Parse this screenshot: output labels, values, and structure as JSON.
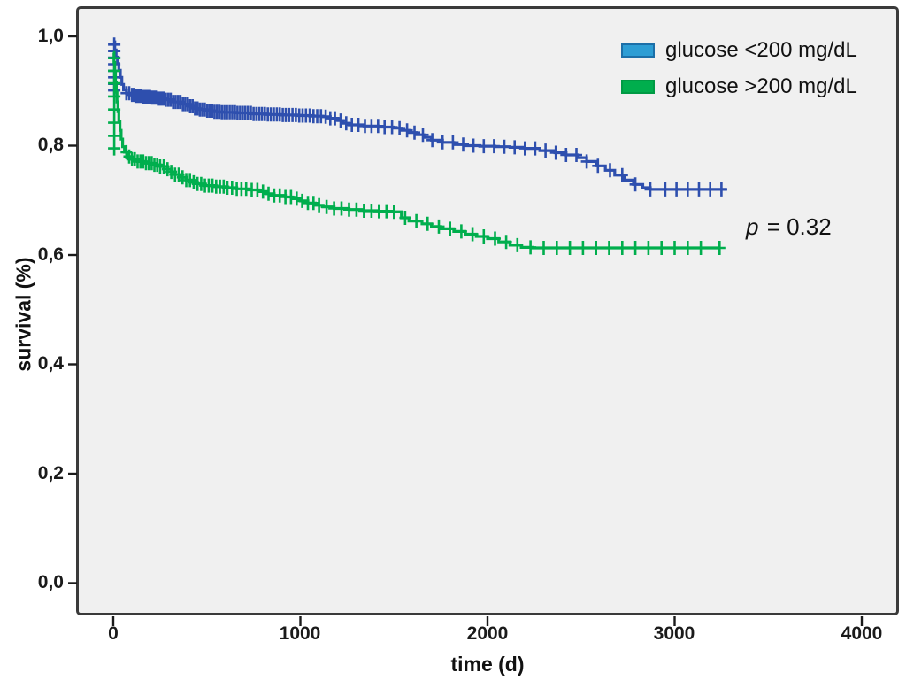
{
  "figure": {
    "background": "#ffffff",
    "panel_background": "#f0f0f0",
    "frame_border_color": "#3a3a3a"
  },
  "legend": {
    "position": "top-right",
    "items": [
      {
        "label": "glucose <200 mg/dL",
        "fill": "#2d9dd4",
        "border": "#1c6fa8"
      },
      {
        "label": "glucose >200 mg/dL",
        "fill": "#00ae4d",
        "border": "#009a44"
      }
    ]
  },
  "annotation": {
    "prefix": "p",
    "rest": " = 0.32"
  },
  "chart_data": {
    "type": "line",
    "subtype": "kaplan-meier-step-survival",
    "title": "",
    "xlabel": "time (d)",
    "ylabel": "survival (%)",
    "xlim": [
      0,
      4000
    ],
    "ylim": [
      0.0,
      1.0
    ],
    "grid": false,
    "legend_position": "top-right",
    "p_value_text": "p = 0.32",
    "x_ticks": [
      "0",
      "1000",
      "2000",
      "3000",
      "4000"
    ],
    "x_tick_values": [
      0,
      1000,
      2000,
      3000,
      4000
    ],
    "y_ticks": [
      "1,0",
      "0,8",
      "0,6",
      "0,4",
      "0,2",
      "0,0"
    ],
    "y_tick_values": [
      1.0,
      0.8,
      0.6,
      0.4,
      0.2,
      0.0
    ],
    "series": [
      {
        "name": "glucose-under-200",
        "label": "glucose <200 mg/dL",
        "color": "#2e4fae",
        "steps": [
          [
            0,
            0.99
          ],
          [
            8,
            0.975
          ],
          [
            15,
            0.962
          ],
          [
            22,
            0.95
          ],
          [
            30,
            0.938
          ],
          [
            38,
            0.925
          ],
          [
            46,
            0.912
          ],
          [
            55,
            0.902
          ],
          [
            70,
            0.896
          ],
          [
            90,
            0.893
          ],
          [
            120,
            0.891
          ],
          [
            160,
            0.889
          ],
          [
            200,
            0.888
          ],
          [
            240,
            0.886
          ],
          [
            280,
            0.884
          ],
          [
            320,
            0.88
          ],
          [
            360,
            0.876
          ],
          [
            400,
            0.872
          ],
          [
            430,
            0.868
          ],
          [
            460,
            0.866
          ],
          [
            500,
            0.864
          ],
          [
            540,
            0.862
          ],
          [
            580,
            0.861
          ],
          [
            660,
            0.86
          ],
          [
            740,
            0.858
          ],
          [
            820,
            0.857
          ],
          [
            900,
            0.856
          ],
          [
            980,
            0.855
          ],
          [
            1060,
            0.854
          ],
          [
            1120,
            0.853
          ],
          [
            1160,
            0.85
          ],
          [
            1200,
            0.846
          ],
          [
            1230,
            0.841
          ],
          [
            1260,
            0.838
          ],
          [
            1340,
            0.836
          ],
          [
            1420,
            0.834
          ],
          [
            1500,
            0.832
          ],
          [
            1540,
            0.828
          ],
          [
            1580,
            0.824
          ],
          [
            1620,
            0.82
          ],
          [
            1660,
            0.815
          ],
          [
            1700,
            0.81
          ],
          [
            1760,
            0.806
          ],
          [
            1820,
            0.802
          ],
          [
            1880,
            0.8
          ],
          [
            1960,
            0.799
          ],
          [
            2040,
            0.798
          ],
          [
            2120,
            0.797
          ],
          [
            2200,
            0.795
          ],
          [
            2280,
            0.791
          ],
          [
            2360,
            0.787
          ],
          [
            2420,
            0.783
          ],
          [
            2480,
            0.778
          ],
          [
            2530,
            0.771
          ],
          [
            2580,
            0.763
          ],
          [
            2630,
            0.755
          ],
          [
            2680,
            0.746
          ],
          [
            2730,
            0.737
          ],
          [
            2780,
            0.729
          ],
          [
            2830,
            0.723
          ],
          [
            2870,
            0.72
          ],
          [
            3280,
            0.72
          ]
        ],
        "entry_censor_values": [
          0.985,
          0.973,
          0.961,
          0.949,
          0.937,
          0.925,
          0.913,
          0.901
        ],
        "censor_times": [
          70,
          85,
          100,
          112,
          124,
          136,
          148,
          160,
          172,
          184,
          196,
          208,
          220,
          232,
          244,
          256,
          268,
          281,
          294,
          307,
          320,
          333,
          346,
          359,
          372,
          385,
          398,
          411,
          424,
          437,
          450,
          463,
          476,
          489,
          502,
          515,
          528,
          541,
          554,
          567,
          580,
          594,
          608,
          622,
          636,
          650,
          664,
          678,
          692,
          706,
          720,
          735,
          750,
          765,
          780,
          795,
          810,
          826,
          842,
          858,
          874,
          890,
          906,
          922,
          940,
          958,
          976,
          994,
          1012,
          1030,
          1050,
          1070,
          1090,
          1110,
          1135,
          1160,
          1185,
          1215,
          1245,
          1275,
          1310,
          1345,
          1380,
          1415,
          1450,
          1490,
          1530,
          1570,
          1610,
          1655,
          1705,
          1760,
          1815,
          1870,
          1925,
          1980,
          2035,
          2090,
          2145,
          2200,
          2255,
          2310,
          2365,
          2420,
          2475,
          2530,
          2590,
          2655,
          2720,
          2790,
          2870,
          2950,
          3010,
          3070,
          3130,
          3190,
          3250
        ]
      },
      {
        "name": "glucose-over-200",
        "label": "glucose >200 mg/dL",
        "color": "#00ae4d",
        "steps": [
          [
            0,
            0.97
          ],
          [
            4,
            0.952
          ],
          [
            8,
            0.934
          ],
          [
            12,
            0.916
          ],
          [
            16,
            0.898
          ],
          [
            20,
            0.88
          ],
          [
            25,
            0.862
          ],
          [
            30,
            0.845
          ],
          [
            36,
            0.828
          ],
          [
            42,
            0.812
          ],
          [
            50,
            0.798
          ],
          [
            60,
            0.788
          ],
          [
            75,
            0.78
          ],
          [
            95,
            0.775
          ],
          [
            130,
            0.771
          ],
          [
            170,
            0.768
          ],
          [
            210,
            0.765
          ],
          [
            250,
            0.762
          ],
          [
            290,
            0.757
          ],
          [
            310,
            0.752
          ],
          [
            330,
            0.747
          ],
          [
            360,
            0.742
          ],
          [
            390,
            0.737
          ],
          [
            420,
            0.733
          ],
          [
            450,
            0.73
          ],
          [
            490,
            0.727
          ],
          [
            540,
            0.725
          ],
          [
            600,
            0.723
          ],
          [
            660,
            0.721
          ],
          [
            720,
            0.719
          ],
          [
            780,
            0.716
          ],
          [
            820,
            0.712
          ],
          [
            860,
            0.709
          ],
          [
            920,
            0.706
          ],
          [
            960,
            0.703
          ],
          [
            1000,
            0.699
          ],
          [
            1040,
            0.695
          ],
          [
            1080,
            0.691
          ],
          [
            1120,
            0.688
          ],
          [
            1180,
            0.685
          ],
          [
            1260,
            0.683
          ],
          [
            1340,
            0.681
          ],
          [
            1420,
            0.68
          ],
          [
            1500,
            0.679
          ],
          [
            1540,
            0.668
          ],
          [
            1580,
            0.662
          ],
          [
            1650,
            0.657
          ],
          [
            1700,
            0.652
          ],
          [
            1750,
            0.648
          ],
          [
            1820,
            0.643
          ],
          [
            1880,
            0.638
          ],
          [
            1940,
            0.634
          ],
          [
            2000,
            0.63
          ],
          [
            2060,
            0.624
          ],
          [
            2120,
            0.618
          ],
          [
            2180,
            0.614
          ],
          [
            2240,
            0.613
          ],
          [
            3240,
            0.613
          ]
        ],
        "entry_censor_values": [
          0.96,
          0.937,
          0.914,
          0.89,
          0.866,
          0.842,
          0.818,
          0.795
        ],
        "censor_times": [
          70,
          85,
          100,
          115,
          130,
          145,
          160,
          175,
          190,
          205,
          220,
          235,
          250,
          270,
          290,
          310,
          330,
          350,
          370,
          390,
          410,
          430,
          450,
          470,
          490,
          510,
          530,
          550,
          570,
          590,
          610,
          635,
          660,
          685,
          710,
          740,
          770,
          800,
          830,
          860,
          890,
          920,
          950,
          980,
          1010,
          1040,
          1070,
          1100,
          1140,
          1180,
          1220,
          1260,
          1300,
          1340,
          1380,
          1420,
          1460,
          1500,
          1560,
          1620,
          1680,
          1740,
          1800,
          1860,
          1920,
          1980,
          2040,
          2100,
          2160,
          2230,
          2300,
          2370,
          2440,
          2510,
          2580,
          2650,
          2720,
          2790,
          2860,
          2930,
          3000,
          3070,
          3140,
          3240
        ]
      }
    ]
  }
}
